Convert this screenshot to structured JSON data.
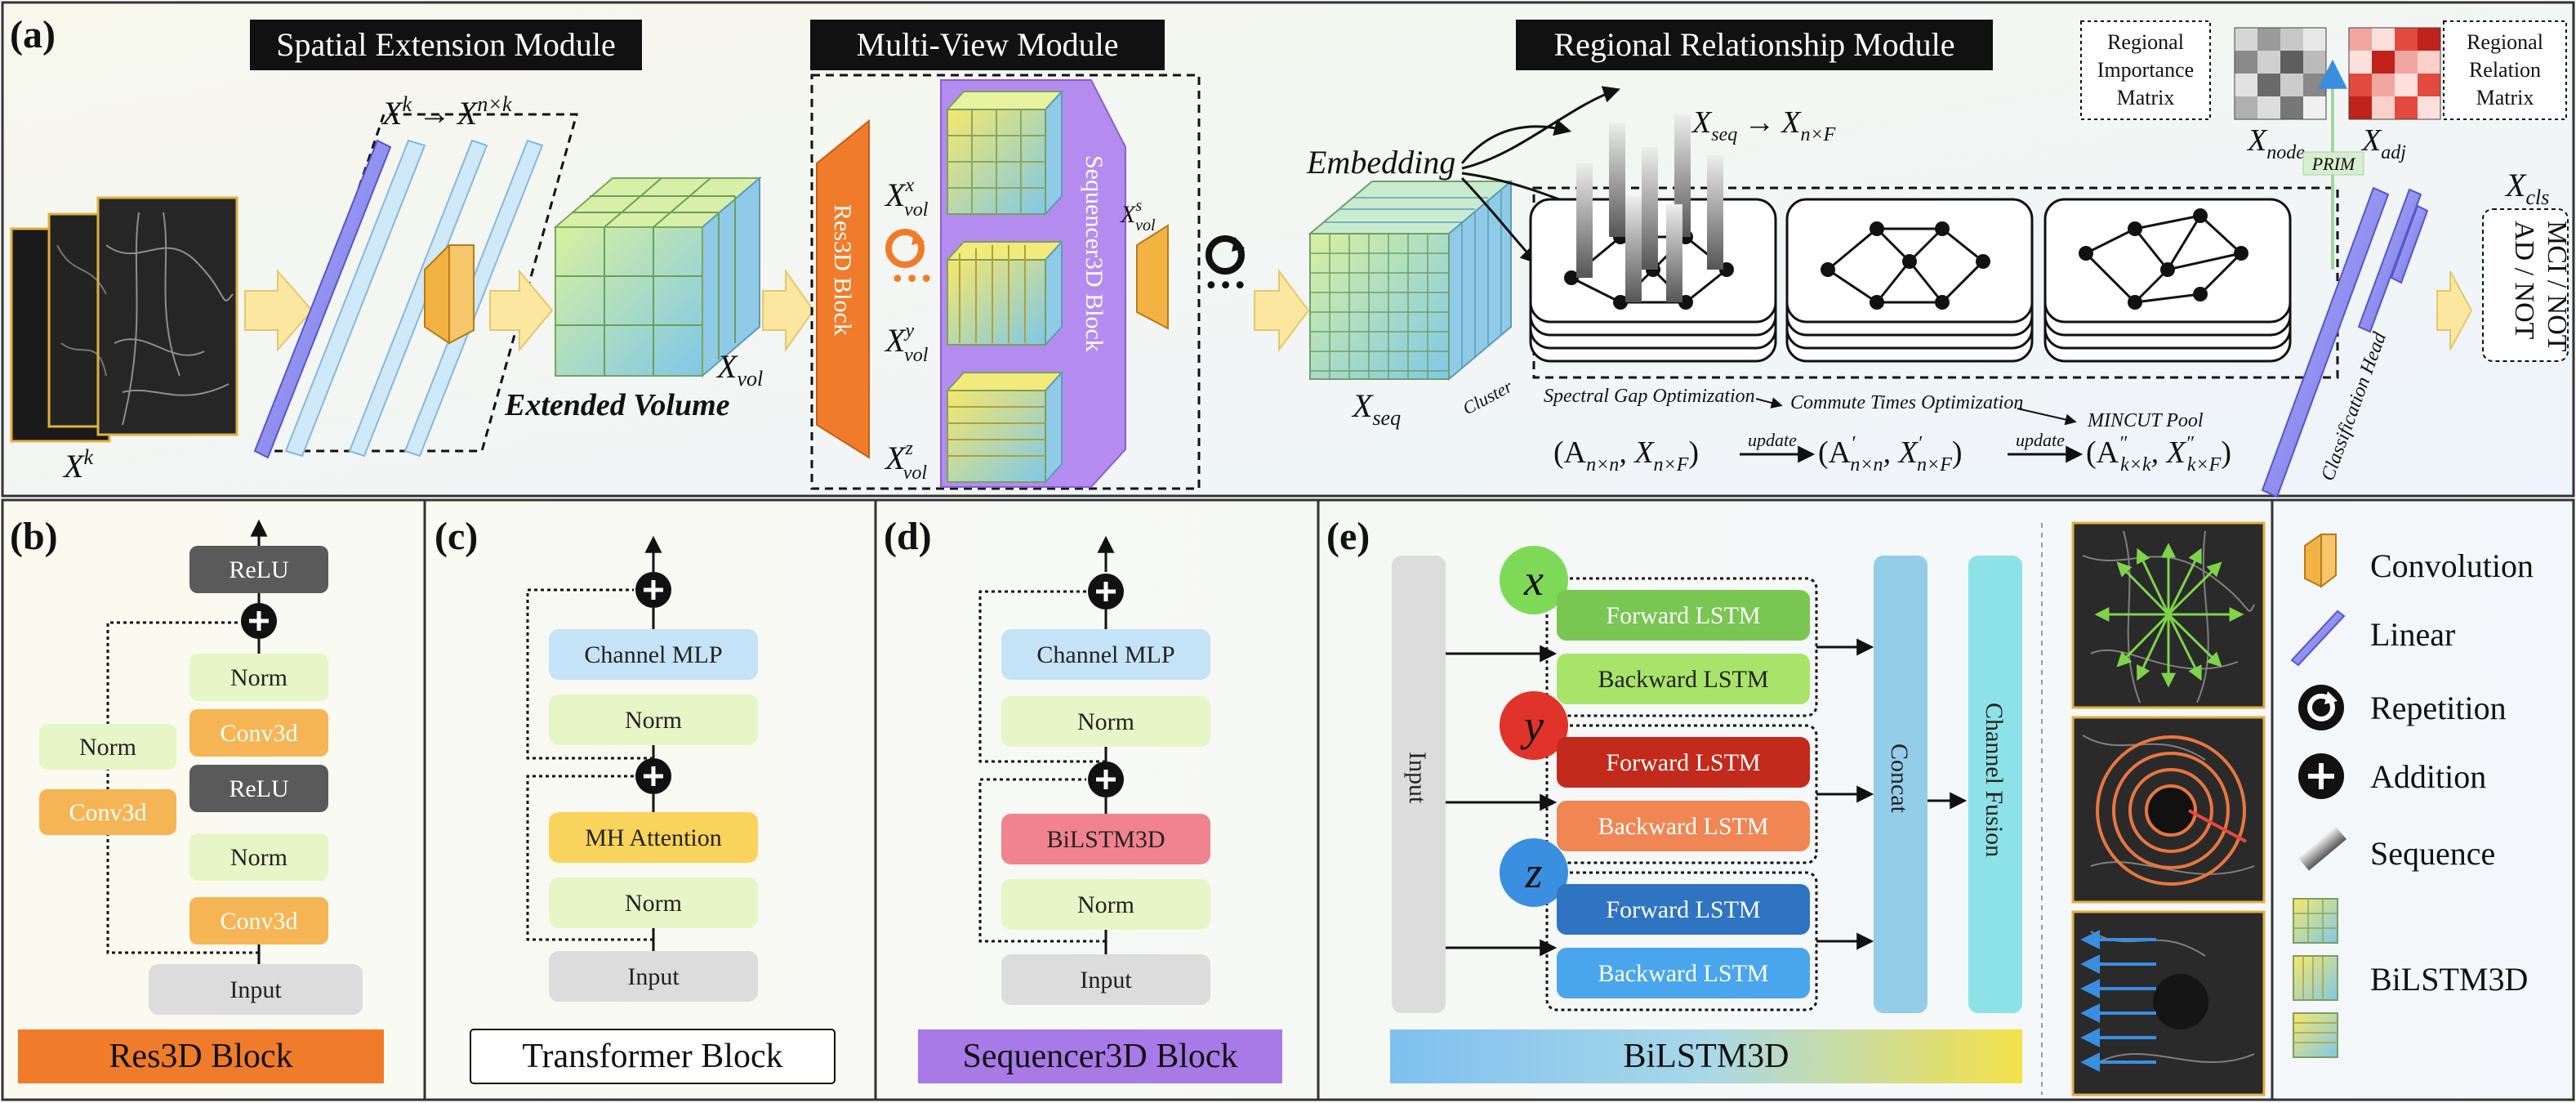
{
  "panels": {
    "a": "(a)",
    "b": "(b)",
    "c": "(c)",
    "d": "(d)",
    "e": "(e)"
  },
  "modules": {
    "spatial": "Spatial Extension Module",
    "multiview": "Multi-View Module",
    "regional": "Regional Relationship Module"
  },
  "panel_a": {
    "xk_label": "X",
    "xk_sup": "k",
    "xk_transform": "X",
    "xk_transform_sup": "k",
    "xk_arrow": "→",
    "xnk": "X",
    "xnk_sup": "n×k",
    "xvol": "X",
    "xvol_sub": "vol",
    "extended_volume": "Extended Volume",
    "res3d": "Res3D Block",
    "sequencer3d": "Sequencer3D Block",
    "xvol_x": "x",
    "xvol_y": "y",
    "xvol_z": "z",
    "xvol_s": "s",
    "vol_sub": "vol",
    "embedding": "Embedding",
    "xseq": "X",
    "xseq_sub": "seq",
    "xseq_to": "X",
    "xseq_to_sub": "seq",
    "xseq_arrow": "→",
    "xnf": "X",
    "xnf_sub": "n×F",
    "cluster": "Cluster",
    "spectral": "Spectral Gap Optimization",
    "commute": "Commute Times Optimization",
    "mincut": "MINCUT Pool",
    "equation_1": "(A",
    "equation_1_sub": "n×n",
    "equation_1b": ", X",
    "equation_1b_sub": "n×F",
    "equation_close": ")",
    "update": "update",
    "equation_2": "(A",
    "equation_2_sub": "n×n",
    "equation_2b": ", X",
    "equation_2b_sub": "n×F",
    "equation_3": "(A",
    "equation_3_sub": "k×k",
    "equation_3b": ", X",
    "equation_3b_sub": "k×F",
    "prime": "′",
    "dprime": "″",
    "importance": [
      "Regional",
      "Importance",
      "Matrix"
    ],
    "relation": [
      "Regional",
      "Relation",
      "Matrix"
    ],
    "xnode": "X",
    "xnode_sub": "node",
    "xadj": "X",
    "xadj_sub": "adj",
    "prim": "PRIM",
    "xcls": "X",
    "xcls_sub": "cls",
    "classification_head": "Classification Head",
    "output": [
      "AD / NOT",
      "MCI / NOT"
    ],
    "dots": "•••"
  },
  "panel_b": {
    "relu_top": "ReLU",
    "norm1": "Norm",
    "conv1": "Conv3d",
    "relu_mid": "ReLU",
    "norm2": "Norm",
    "conv2": "Conv3d",
    "input": "Input",
    "side_norm": "Norm",
    "side_conv": "Conv3d",
    "caption": "Res3D Block"
  },
  "panel_c": {
    "mlp": "Channel MLP",
    "norm_top": "Norm",
    "attn": "MH Attention",
    "norm_bot": "Norm",
    "input": "Input",
    "caption": "Transformer Block"
  },
  "panel_d": {
    "mlp": "Channel MLP",
    "norm_top": "Norm",
    "bilstm": "BiLSTM3D",
    "norm_bot": "Norm",
    "input": "Input",
    "caption": "Sequencer3D Block"
  },
  "panel_e": {
    "input": "Input",
    "x": "x",
    "y": "y",
    "z": "z",
    "fwd": "Forward LSTM",
    "bwd": "Backward LSTM",
    "concat": "Concat",
    "fusion": "Channel Fusion",
    "bottom": "BiLSTM3D"
  },
  "legend": {
    "convolution": "Convolution",
    "linear": "Linear",
    "repetition": "Repetition",
    "addition": "Addition",
    "sequence": "Sequence",
    "bilstm3d": "BiLSTM3D"
  },
  "colors": {
    "orange": "#f07c2b",
    "purple": "#a77ae8",
    "lightblue": "#bde0f5",
    "green_light": "#e6f5c8",
    "dark": "#555555"
  }
}
